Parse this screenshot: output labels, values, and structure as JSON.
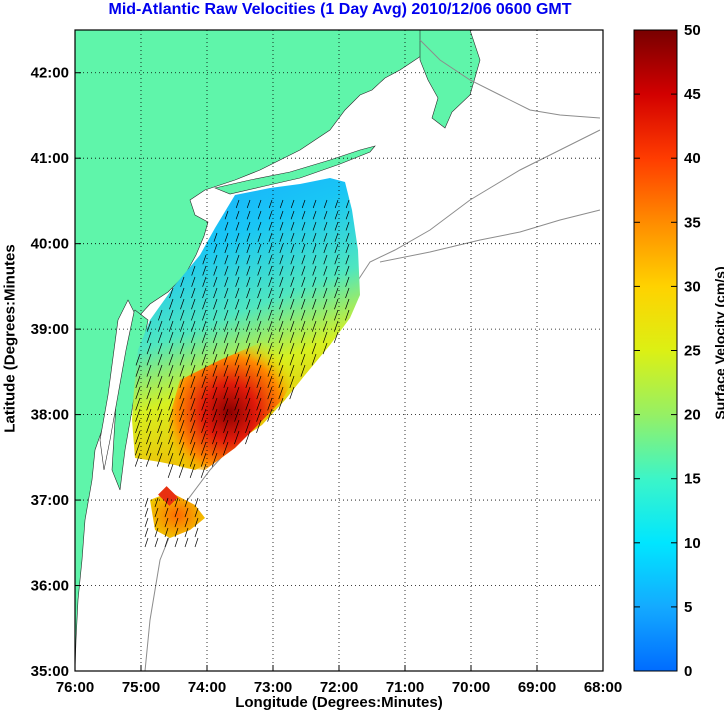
{
  "title": "Mid-Atlantic Raw Velocities (1 Day Avg) 2010/12/06 0600 GMT",
  "xlabel": "Longitude (Degrees:Minutes)",
  "ylabel": "Latitude (Degrees:Minutes",
  "colorbar": {
    "label": "Surface Velocity (cm/s)",
    "ticks": [
      "0",
      "5",
      "10",
      "15",
      "20",
      "25",
      "30",
      "35",
      "40",
      "45",
      "50"
    ],
    "min": 0,
    "max": 50
  },
  "axes": {
    "x_ticks": [
      "76:00",
      "75:00",
      "74:00",
      "73:00",
      "72:00",
      "71:00",
      "70:00",
      "69:00",
      "68:00"
    ],
    "y_ticks": [
      "42:00",
      "41:00",
      "40:00",
      "39:00",
      "38:00",
      "37:00",
      "36:00",
      "35:00"
    ],
    "xlim": [
      -76,
      -68
    ],
    "ylim": [
      35,
      42.5
    ],
    "grid": "dotted"
  },
  "colors": {
    "land": "#5ff5aa",
    "title": "#0000ee",
    "frame": "#000000"
  }
}
